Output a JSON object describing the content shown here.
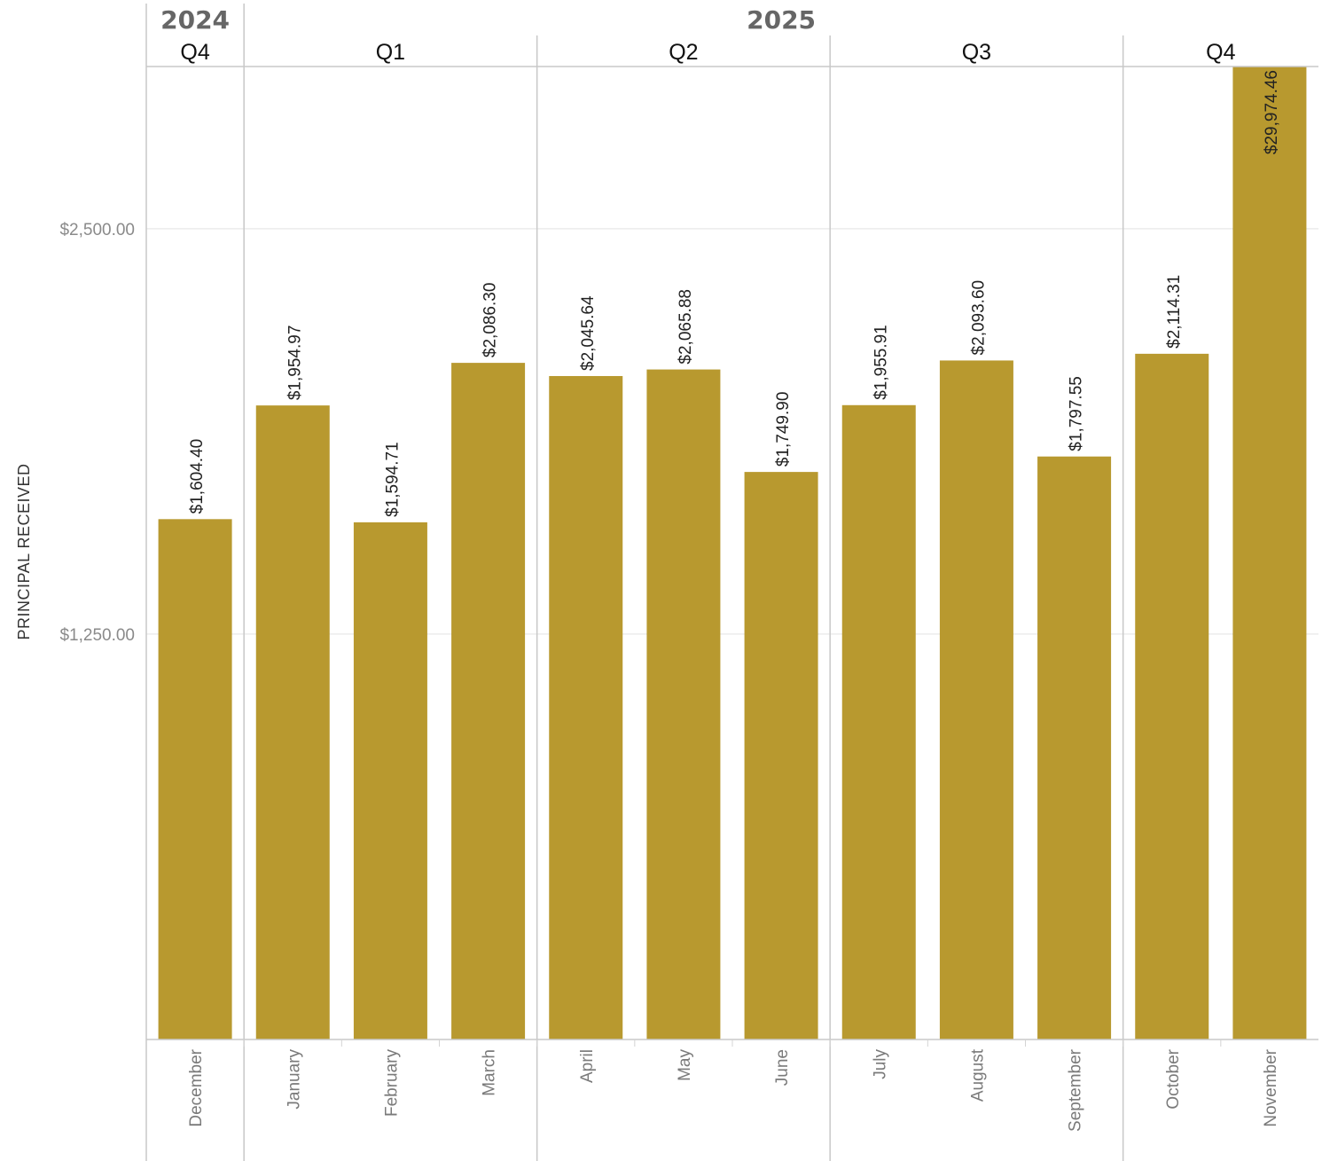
{
  "chart_data": {
    "type": "bar",
    "ylabel": "PRINCIPAL RECEIVED",
    "ylim": [
      0,
      3000
    ],
    "y_ticks": [
      1250,
      2500
    ],
    "y_tick_labels": [
      "$1,250.00",
      "$2,500.00"
    ],
    "grid": true,
    "bar_color": "#b8992f",
    "years": [
      {
        "label": "2024",
        "first": 0,
        "last": 0
      },
      {
        "label": "2025",
        "first": 1,
        "last": 11
      }
    ],
    "quarters": [
      {
        "label": "Q4",
        "first": 0,
        "last": 0
      },
      {
        "label": "Q1",
        "first": 1,
        "last": 3
      },
      {
        "label": "Q2",
        "first": 4,
        "last": 6
      },
      {
        "label": "Q3",
        "first": 7,
        "last": 9
      },
      {
        "label": "Q4",
        "first": 10,
        "last": 11
      }
    ],
    "categories": [
      "December",
      "January",
      "February",
      "March",
      "April",
      "May",
      "June",
      "July",
      "August",
      "September",
      "October",
      "November"
    ],
    "values": [
      1604.4,
      1954.97,
      1594.71,
      2086.3,
      2045.64,
      2065.88,
      1749.9,
      1955.91,
      2093.6,
      1797.55,
      2114.31,
      29974.46
    ],
    "value_labels": [
      "$1,604.40",
      "$1,954.97",
      "$1,594.71",
      "$2,086.30",
      "$2,045.64",
      "$2,065.88",
      "$1,749.90",
      "$1,955.91",
      "$2,093.60",
      "$1,797.55",
      "$2,114.31",
      "$29,974.46"
    ]
  }
}
